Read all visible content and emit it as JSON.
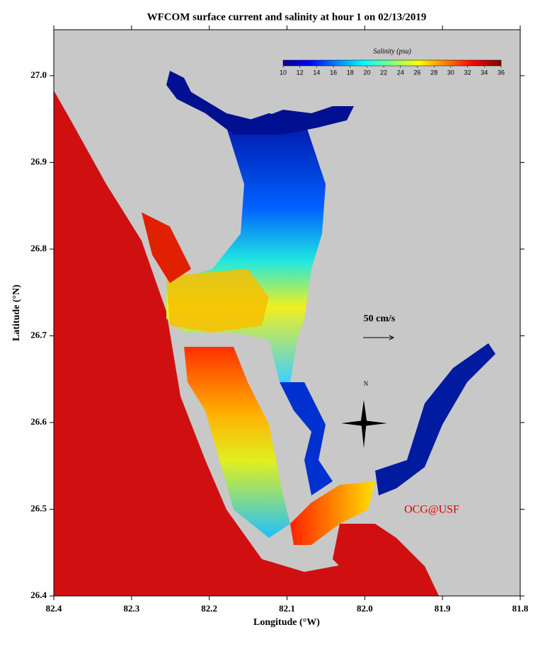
{
  "title": "WFCOM surface current and salinity at hour 1 on 02/13/2019",
  "x_axis": {
    "label": "Longitude (°W)",
    "lim": [
      82.4,
      81.8
    ],
    "ticks": [
      {
        "value": 82.4,
        "label": "82.4"
      },
      {
        "value": 82.3,
        "label": "82.3"
      },
      {
        "value": 82.2,
        "label": "82.2"
      },
      {
        "value": 82.1,
        "label": "82.1"
      },
      {
        "value": 82.0,
        "label": "82.0"
      },
      {
        "value": 81.9,
        "label": "81.9"
      },
      {
        "value": 81.8,
        "label": "81.8"
      }
    ]
  },
  "y_axis": {
    "label": "Latitude (°N)",
    "lim": [
      26.4,
      27.053
    ],
    "ticks": [
      {
        "value": 26.4,
        "label": "26.4"
      },
      {
        "value": 26.5,
        "label": "26.5"
      },
      {
        "value": 26.6,
        "label": "26.6"
      },
      {
        "value": 26.7,
        "label": "26.7"
      },
      {
        "value": 26.8,
        "label": "26.8"
      },
      {
        "value": 26.9,
        "label": "26.9"
      },
      {
        "value": 27.0,
        "label": "27.0"
      }
    ]
  },
  "colorbar": {
    "title": "Salinity (psu)",
    "lim": [
      10,
      36
    ],
    "ticks": [
      10,
      12,
      14,
      16,
      18,
      20,
      22,
      24,
      26,
      28,
      30,
      32,
      34,
      36
    ]
  },
  "annotations": {
    "scale": "50 cm/s",
    "north": "N",
    "credit": "OCG@USF"
  }
}
